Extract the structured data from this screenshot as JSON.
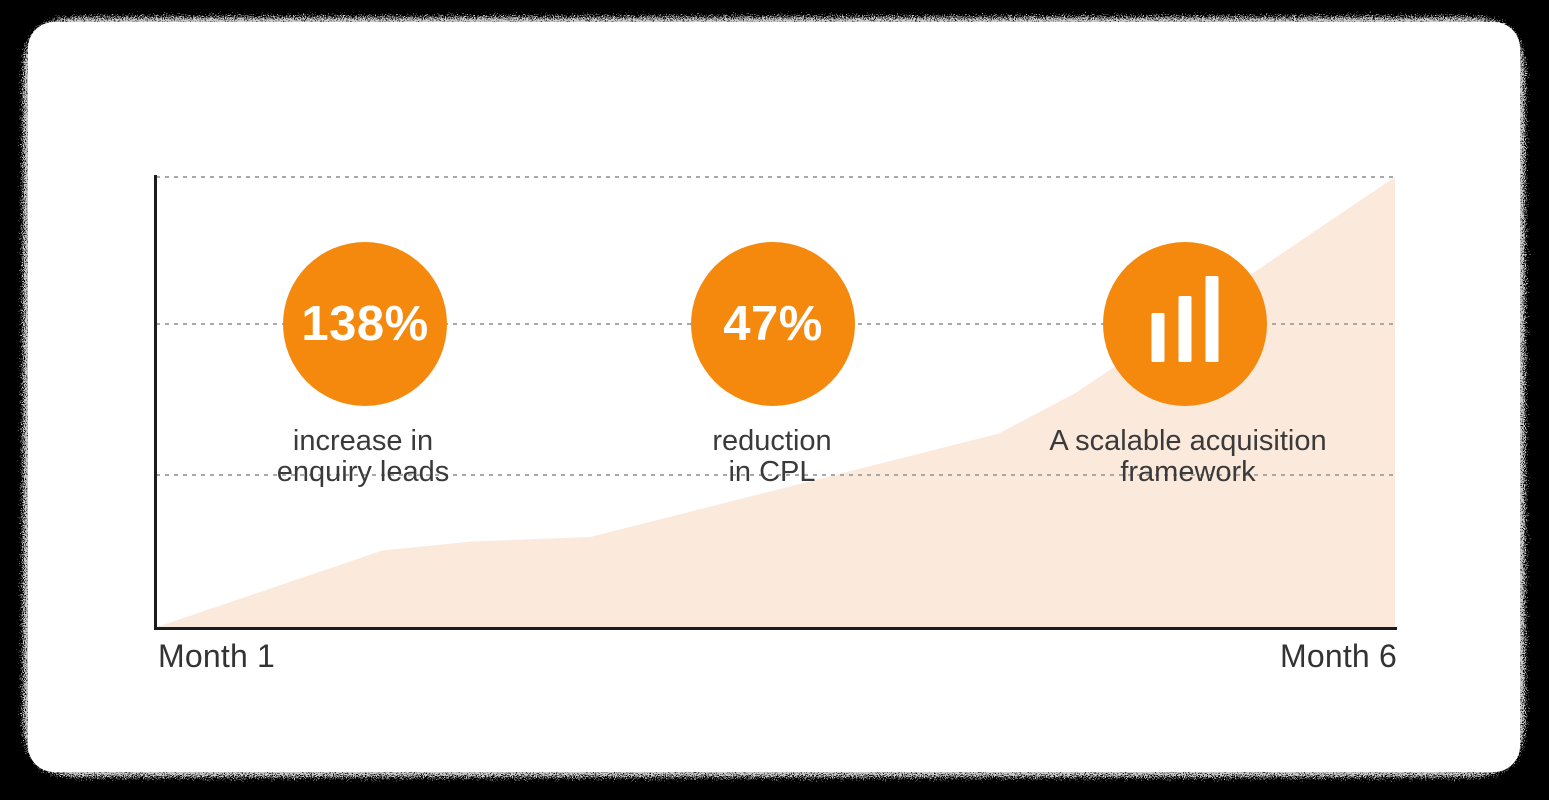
{
  "colors": {
    "background": "#000000",
    "card": "#FFFFFF",
    "accent_orange": "#F5890E",
    "area_fill": "#FBE9DC",
    "gridline": "#A8A8A8",
    "axis": "#1C1C1C",
    "label_text": "#3A3A3A",
    "bubble_text": "#FFFFFF"
  },
  "chart_data": {
    "type": "area",
    "title": "",
    "xlabel": "",
    "ylabel": "",
    "x_axis_labels": [
      "Month 1",
      "Month 6"
    ],
    "x_range_months": [
      1,
      6
    ],
    "y_axis": {
      "tick_labels_visible": false,
      "range_pct_of_max": [
        0,
        100
      ],
      "gridline_values_pct": [
        33.3,
        66.7,
        100
      ],
      "grid_style": "dotted horizontal"
    },
    "legend": "none",
    "series": [
      {
        "name": "growth",
        "fill_color": "#FBE9DC",
        "value_units": "percent_of_chart_max",
        "points": [
          {
            "month": 1.0,
            "value": 0
          },
          {
            "month": 1.91,
            "value": 17
          },
          {
            "month": 2.27,
            "value": 19
          },
          {
            "month": 2.75,
            "value": 20
          },
          {
            "month": 4.4,
            "value": 43
          },
          {
            "month": 4.71,
            "value": 52
          },
          {
            "month": 6.0,
            "value": 100
          }
        ]
      }
    ]
  },
  "metrics": [
    {
      "value": "138%",
      "label_lines": [
        "increase in",
        "enquiry leads"
      ]
    },
    {
      "value": "47%",
      "label_lines": [
        "reduction",
        "in CPL"
      ]
    },
    {
      "icon": "bar-chart-icon",
      "icon_bars": [
        49,
        66,
        86
      ],
      "label_lines": [
        "A scalable acquisition",
        "framework"
      ]
    }
  ]
}
